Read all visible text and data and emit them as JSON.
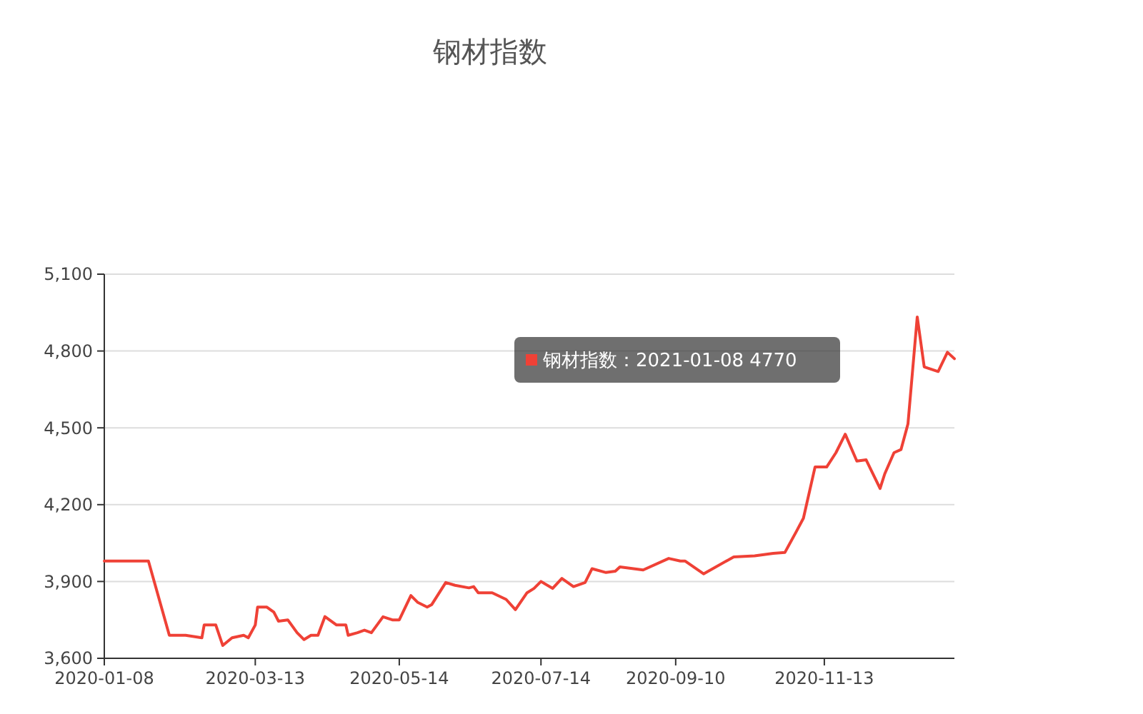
{
  "chart_data": {
    "type": "line",
    "title": "钢材指数",
    "x": [
      "2020-01-08",
      "2020-01-27",
      "2020-02-05",
      "2020-02-12",
      "2020-02-19",
      "2020-02-20",
      "2020-02-25",
      "2020-02-28",
      "2020-03-03",
      "2020-03-08",
      "2020-03-10",
      "2020-03-13",
      "2020-03-14",
      "2020-03-18",
      "2020-03-21",
      "2020-03-23",
      "2020-03-27",
      "2020-03-31",
      "2020-04-03",
      "2020-04-06",
      "2020-04-09",
      "2020-04-12",
      "2020-04-17",
      "2020-04-21",
      "2020-04-22",
      "2020-04-26",
      "2020-04-29",
      "2020-05-02",
      "2020-05-07",
      "2020-05-11",
      "2020-05-14",
      "2020-05-19",
      "2020-05-22",
      "2020-05-26",
      "2020-05-28",
      "2020-06-03",
      "2020-06-07",
      "2020-06-13",
      "2020-06-15",
      "2020-06-17",
      "2020-06-23",
      "2020-06-29",
      "2020-07-03",
      "2020-07-08",
      "2020-07-11",
      "2020-07-14",
      "2020-07-19",
      "2020-07-23",
      "2020-07-28",
      "2020-08-02",
      "2020-08-05",
      "2020-08-11",
      "2020-08-15",
      "2020-08-17",
      "2020-08-27",
      "2020-09-07",
      "2020-09-12",
      "2020-09-14",
      "2020-09-22",
      "2020-10-05",
      "2020-10-14",
      "2020-10-22",
      "2020-10-27",
      "2020-11-01",
      "2020-11-04",
      "2020-11-09",
      "2020-11-14",
      "2020-11-18",
      "2020-11-22",
      "2020-11-27",
      "2020-12-01",
      "2020-12-07",
      "2020-12-09",
      "2020-12-13",
      "2020-12-16",
      "2020-12-19",
      "2020-12-23",
      "2020-12-26",
      "2021-01-01",
      "2021-01-05",
      "2021-01-08"
    ],
    "series": [
      {
        "color": "#ef4136",
        "values": [
          3980,
          3980,
          3690,
          3690,
          3680,
          3730,
          3730,
          3650,
          3680,
          3690,
          3680,
          3730,
          3800,
          3800,
          3780,
          3745,
          3750,
          3700,
          3673,
          3690,
          3690,
          3763,
          3730,
          3730,
          3690,
          3700,
          3710,
          3700,
          3762,
          3750,
          3750,
          3845,
          3818,
          3800,
          3810,
          3896,
          3885,
          3875,
          3880,
          3856,
          3856,
          3830,
          3790,
          3856,
          3873,
          3900,
          3873,
          3912,
          3880,
          3896,
          3950,
          3935,
          3940,
          3957,
          3945,
          3990,
          3980,
          3980,
          3930,
          3996,
          4000,
          4010,
          4013,
          4096,
          4147,
          4347,
          4347,
          4403,
          4475,
          4370,
          4375,
          4263,
          4320,
          4403,
          4415,
          4515,
          4933,
          4738,
          4720,
          4795,
          4770
        ]
      }
    ],
    "xlim": [
      "2020-01-08",
      "2021-01-08"
    ],
    "xticks": [
      "2020-01-08",
      "2020-03-13",
      "2020-05-14",
      "2020-07-14",
      "2020-09-10",
      "2020-11-13"
    ],
    "ylim": [
      3600,
      5100
    ],
    "yticks": [
      {
        "value": 3600,
        "label": "3,600"
      },
      {
        "value": 3900,
        "label": "3,900"
      },
      {
        "value": 4200,
        "label": "4,200"
      },
      {
        "value": 4500,
        "label": "4,500"
      },
      {
        "value": 4800,
        "label": "4,800"
      },
      {
        "value": 5100,
        "label": "5,100"
      }
    ],
    "grid": "y",
    "annotations": [
      "钢材指数：2021-01-08 4770"
    ]
  }
}
